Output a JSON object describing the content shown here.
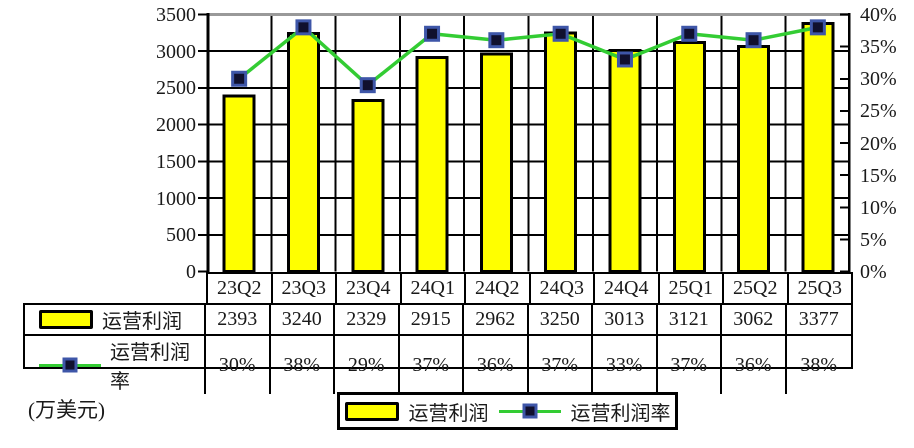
{
  "unit_label": "(万美元)",
  "colors": {
    "bar_fill": "#FFFF00",
    "bar_border": "#000000",
    "line": "#33CC33",
    "marker_fill": "#10102E",
    "marker_border": "#3E56A8",
    "grid": "#000000",
    "plot_top_border": "#999999",
    "axis": "#000000"
  },
  "chart_data": {
    "type": "bar+line",
    "categories": [
      "23Q2",
      "23Q3",
      "23Q4",
      "24Q1",
      "24Q2",
      "24Q3",
      "24Q4",
      "25Q1",
      "25Q2",
      "25Q3"
    ],
    "series": [
      {
        "name": "运营利润",
        "type": "bar",
        "axis": "left",
        "values": [
          2393,
          3240,
          2329,
          2915,
          2962,
          3250,
          3013,
          3121,
          3062,
          3377
        ]
      },
      {
        "name": "运营利润率",
        "type": "line",
        "axis": "right",
        "unit": "%",
        "values": [
          30,
          38,
          29,
          37,
          36,
          37,
          33,
          37,
          36,
          38
        ]
      }
    ],
    "left_axis": {
      "min": 0,
      "max": 3500,
      "step": 500,
      "ticks": [
        "0",
        "500",
        "1000",
        "1500",
        "2000",
        "2500",
        "3000",
        "3500"
      ]
    },
    "right_axis": {
      "min": 0,
      "max": 40,
      "step": 5,
      "ticks": [
        "0%",
        "5%",
        "10%",
        "15%",
        "20%",
        "25%",
        "30%",
        "35%",
        "40%"
      ]
    },
    "grid": true,
    "legend_position": "bottom",
    "unit_label": "(万美元)"
  },
  "table": {
    "categories": [
      "23Q2",
      "23Q3",
      "23Q4",
      "24Q1",
      "24Q2",
      "24Q3",
      "24Q4",
      "25Q1",
      "25Q2",
      "25Q3"
    ],
    "rows": [
      {
        "label": "运营利润",
        "key": "bar-swatch",
        "values": [
          "2393",
          "3240",
          "2329",
          "2915",
          "2962",
          "3250",
          "3013",
          "3121",
          "3062",
          "3377"
        ]
      },
      {
        "label": "运营利润率",
        "key": "line-marker",
        "values": [
          "30%",
          "38%",
          "29%",
          "37%",
          "36%",
          "37%",
          "33%",
          "37%",
          "36%",
          "38%"
        ]
      }
    ]
  },
  "legend": {
    "items": [
      {
        "label": "运营利润",
        "swatch": "bar"
      },
      {
        "label": "运营利润率",
        "swatch": "line-marker"
      }
    ]
  }
}
